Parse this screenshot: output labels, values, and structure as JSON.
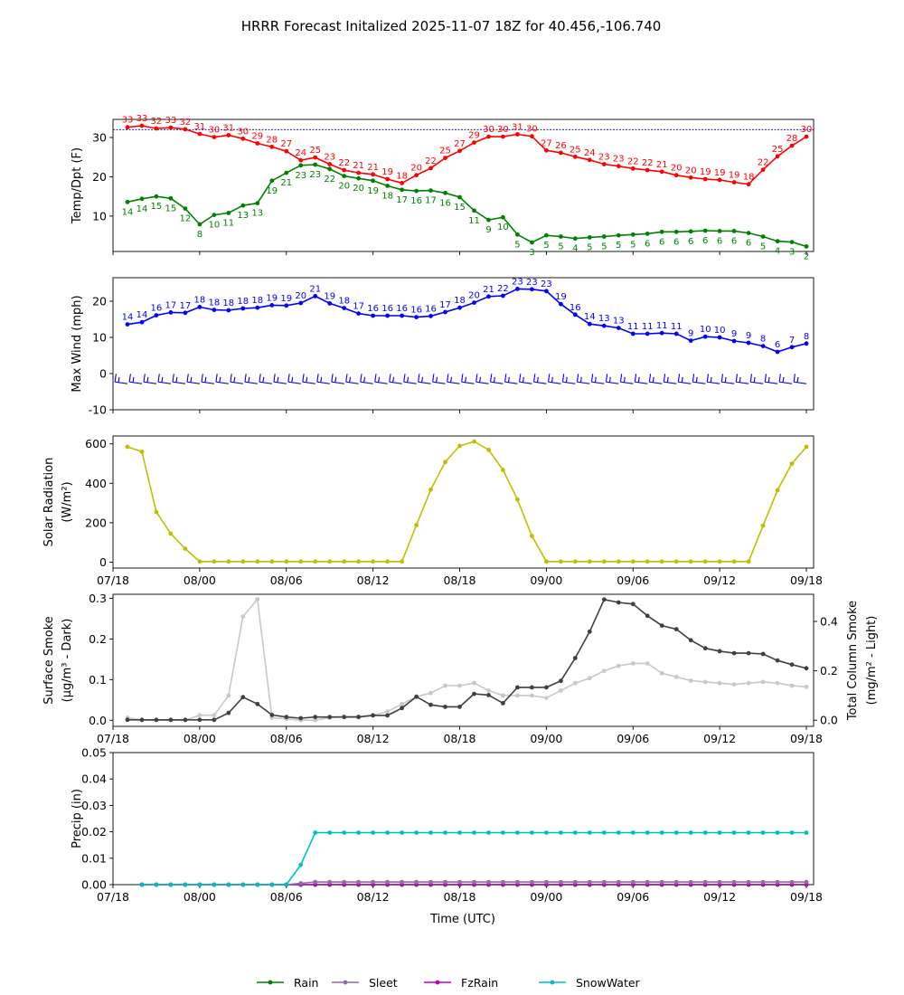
{
  "title": "HRRR Forecast Initalized 2025-11-07 18Z for 40.456,-106.740",
  "colors": {
    "temp": "#ff0000",
    "dewpoint": "#008000",
    "wind": "#0000ff",
    "solar": "#bfbf00",
    "smoke_surface": "#404040",
    "smoke_column": "#c8c8c8",
    "rain": "#008000",
    "sleet": "#8c6ea0",
    "fzrain": "#bf00bf",
    "snowwater": "#00bfbf"
  },
  "x_axis": {
    "label": "Time (UTC)",
    "ticks": [
      {
        "h": 0,
        "label": "07/18"
      },
      {
        "h": 6,
        "label": "08/00"
      },
      {
        "h": 12,
        "label": "08/06"
      },
      {
        "h": 18,
        "label": "08/12"
      },
      {
        "h": 24,
        "label": "08/18"
      },
      {
        "h": 30,
        "label": "09/00"
      },
      {
        "h": 36,
        "label": "09/06"
      },
      {
        "h": 42,
        "label": "09/12"
      },
      {
        "h": 48,
        "label": "09/18"
      }
    ],
    "range_hours": [
      0,
      48.5
    ]
  },
  "chart_data": [
    {
      "type": "line",
      "ylabel": "Temp/Dpt (F)",
      "ylim": [
        1,
        34.6
      ],
      "yticks": [
        10,
        20,
        30
      ],
      "freezing_line": 32,
      "x_hours_start": 1,
      "series": [
        {
          "name": "Temperature",
          "color_key": "temp",
          "labels": "above",
          "values": [
            32.6,
            33.0,
            32.3,
            32.5,
            32.1,
            30.9,
            30.1,
            30.6,
            29.7,
            28.5,
            27.6,
            26.5,
            24.2,
            24.9,
            23.2,
            21.7,
            21.0,
            20.6,
            19.4,
            18.4,
            20.4,
            22.2,
            24.8,
            26.6,
            28.7,
            30.2,
            30.2,
            30.8,
            30.3,
            26.7,
            26.1,
            25.1,
            24.3,
            23.2,
            22.7,
            22.1,
            21.7,
            21.3,
            20.4,
            19.8,
            19.4,
            19.2,
            18.6,
            18.1,
            21.8,
            25.2,
            27.9,
            30.2
          ]
        },
        {
          "name": "Dewpoint",
          "color_key": "dewpoint",
          "labels": "below",
          "values": [
            13.6,
            14.4,
            15.0,
            14.5,
            11.9,
            7.9,
            10.3,
            10.8,
            12.7,
            13.3,
            19.0,
            21.0,
            22.9,
            23.1,
            22.0,
            20.2,
            19.6,
            19.0,
            17.7,
            16.7,
            16.4,
            16.5,
            15.9,
            14.8,
            11.4,
            9.0,
            9.7,
            5.3,
            3.3,
            5.1,
            4.8,
            4.3,
            4.6,
            4.8,
            5.1,
            5.3,
            5.5,
            6.0,
            6.0,
            6.1,
            6.3,
            6.2,
            6.2,
            5.7,
            4.8,
            3.6,
            3.4,
            2.3
          ]
        }
      ]
    },
    {
      "type": "line",
      "ylabel": "Max Wind (mph)",
      "ylim": [
        -10,
        26.5
      ],
      "yticks": [
        -10,
        0,
        10,
        20
      ],
      "x_hours_start": 1,
      "barbs_y": -2.8,
      "series": [
        {
          "name": "Max Wind",
          "color_key": "wind",
          "labels": "above",
          "values": [
            13.6,
            14.2,
            16.1,
            16.9,
            16.8,
            18.4,
            17.6,
            17.5,
            18.0,
            18.2,
            18.9,
            18.8,
            19.5,
            21.4,
            19.4,
            18.1,
            16.6,
            16.0,
            16.0,
            16.0,
            15.6,
            15.9,
            17.0,
            18.2,
            19.6,
            21.3,
            21.5,
            23.4,
            23.3,
            22.8,
            19.2,
            16.3,
            13.7,
            13.2,
            12.6,
            11.0,
            11.0,
            11.2,
            11.0,
            9.1,
            10.2,
            10.0,
            9.0,
            8.5,
            7.6,
            6.0,
            7.3,
            8.3
          ]
        }
      ]
    },
    {
      "type": "line",
      "ylabel": "Solar Radiation",
      "ylabel2": "(W/m²)",
      "ylim": [
        -30,
        640
      ],
      "yticks": [
        0,
        200,
        400,
        600
      ],
      "x_hours_start": 1,
      "series": [
        {
          "name": "Solar Radiation",
          "color_key": "solar",
          "labels": "none",
          "values": [
            585,
            560,
            255,
            145,
            68,
            3,
            3,
            3,
            3,
            3,
            3,
            3,
            3,
            3,
            3,
            3,
            3,
            3,
            3,
            3,
            188,
            368,
            508,
            590,
            612,
            570,
            468,
            318,
            133,
            3,
            3,
            3,
            3,
            3,
            3,
            3,
            3,
            3,
            3,
            3,
            3,
            3,
            3,
            3,
            185,
            365,
            500,
            585
          ]
        }
      ]
    },
    {
      "type": "line",
      "ylabel": "Surface Smoke",
      "ylabel2": "(μg/m³ - Dark)",
      "ylabel_right": "Total Column Smoke",
      "ylabel_right2": "(mg/m² - Light)",
      "ylim": [
        -0.015,
        0.31
      ],
      "yticks": [
        0.0,
        0.1,
        0.2,
        0.3
      ],
      "ylim_right": [
        -0.025,
        0.51
      ],
      "yticks_right": [
        0.0,
        0.2,
        0.4
      ],
      "x_hours_start": 1,
      "series": [
        {
          "name": "Total Column Smoke",
          "color_key": "smoke_column",
          "axis": "right",
          "labels": "none",
          "values": [
            0.01,
            0.0,
            0.0,
            0.0,
            0.0,
            0.02,
            0.02,
            0.1,
            0.42,
            0.49,
            0.01,
            0.005,
            0.0,
            0.0,
            0.01,
            0.015,
            0.015,
            0.02,
            0.035,
            0.065,
            0.095,
            0.11,
            0.14,
            0.14,
            0.15,
            0.12,
            0.1,
            0.1,
            0.1,
            0.09,
            0.12,
            0.15,
            0.17,
            0.2,
            0.22,
            0.23,
            0.23,
            0.19,
            0.175,
            0.16,
            0.155,
            0.15,
            0.145,
            0.15,
            0.155,
            0.15,
            0.14,
            0.135
          ]
        },
        {
          "name": "Surface Smoke",
          "color_key": "smoke_surface",
          "axis": "left",
          "labels": "none",
          "values": [
            0.001,
            0.001,
            0.001,
            0.001,
            0.001,
            0.001,
            0.001,
            0.018,
            0.057,
            0.04,
            0.013,
            0.008,
            0.005,
            0.008,
            0.008,
            0.008,
            0.008,
            0.012,
            0.012,
            0.03,
            0.058,
            0.038,
            0.033,
            0.033,
            0.065,
            0.062,
            0.042,
            0.081,
            0.081,
            0.081,
            0.097,
            0.153,
            0.218,
            0.297,
            0.29,
            0.286,
            0.257,
            0.233,
            0.224,
            0.197,
            0.177,
            0.17,
            0.165,
            0.165,
            0.163,
            0.147,
            0.137,
            0.128
          ]
        }
      ]
    },
    {
      "type": "line",
      "ylabel": "Precip (in)",
      "ylim": [
        0,
        0.05
      ],
      "yticks": [
        0.0,
        0.01,
        0.02,
        0.03,
        0.04,
        0.05
      ],
      "ytick_labels": [
        "0.00",
        "0.01",
        "0.02",
        "0.03",
        "0.04",
        "0.05"
      ],
      "x_hours_start": 2,
      "series": [
        {
          "name": "Rain",
          "color_key": "rain",
          "labels": "none",
          "values": [
            0,
            0,
            0,
            0,
            0,
            0,
            0,
            0,
            0,
            0,
            0,
            0,
            0,
            0,
            0,
            0,
            0,
            0,
            0,
            0,
            0,
            0,
            0,
            0,
            0,
            0,
            0,
            0,
            0,
            0,
            0,
            0,
            0,
            0,
            0,
            0,
            0,
            0,
            0,
            0,
            0,
            0,
            0,
            0,
            0,
            0,
            0
          ]
        },
        {
          "name": "FzRain",
          "color_key": "fzrain",
          "labels": "none",
          "values": [
            0,
            0,
            0,
            0,
            0,
            0,
            0,
            0,
            0,
            0,
            0,
            0,
            0,
            0,
            0,
            0,
            0,
            0,
            0,
            0,
            0,
            0,
            0,
            0,
            0,
            0,
            0,
            0,
            0,
            0,
            0,
            0,
            0,
            0,
            0,
            0,
            0,
            0,
            0,
            0,
            0,
            0,
            0,
            0,
            0,
            0,
            0
          ]
        },
        {
          "name": "Sleet",
          "color_key": "sleet",
          "labels": "none",
          "values": [
            0,
            0,
            0,
            0,
            0,
            0,
            0,
            0,
            0,
            0,
            0,
            0.0005,
            0.001,
            0.001,
            0.001,
            0.001,
            0.001,
            0.001,
            0.001,
            0.001,
            0.001,
            0.001,
            0.001,
            0.001,
            0.001,
            0.001,
            0.001,
            0.001,
            0.001,
            0.001,
            0.001,
            0.001,
            0.001,
            0.001,
            0.001,
            0.001,
            0.001,
            0.001,
            0.001,
            0.001,
            0.001,
            0.001,
            0.001,
            0.001,
            0.001,
            0.001,
            0.001
          ]
        },
        {
          "name": "SnowWater",
          "color_key": "snowwater",
          "labels": "none",
          "values": [
            0,
            0,
            0,
            0,
            0,
            0,
            0,
            0,
            0,
            0,
            0,
            0.0075,
            0.0197,
            0.0197,
            0.0197,
            0.0197,
            0.0197,
            0.0197,
            0.0197,
            0.0197,
            0.0197,
            0.0197,
            0.0197,
            0.0197,
            0.0197,
            0.0197,
            0.0197,
            0.0197,
            0.0197,
            0.0197,
            0.0197,
            0.0197,
            0.0197,
            0.0197,
            0.0197,
            0.0197,
            0.0197,
            0.0197,
            0.0197,
            0.0197,
            0.0197,
            0.0197,
            0.0197,
            0.0197,
            0.0197,
            0.0197,
            0.0197
          ]
        }
      ]
    }
  ],
  "legend": [
    {
      "label": "Rain",
      "color_key": "rain"
    },
    {
      "label": "Sleet",
      "color_key": "sleet"
    },
    {
      "label": "FzRain",
      "color_key": "fzrain"
    },
    {
      "label": "SnowWater",
      "color_key": "snowwater"
    }
  ]
}
